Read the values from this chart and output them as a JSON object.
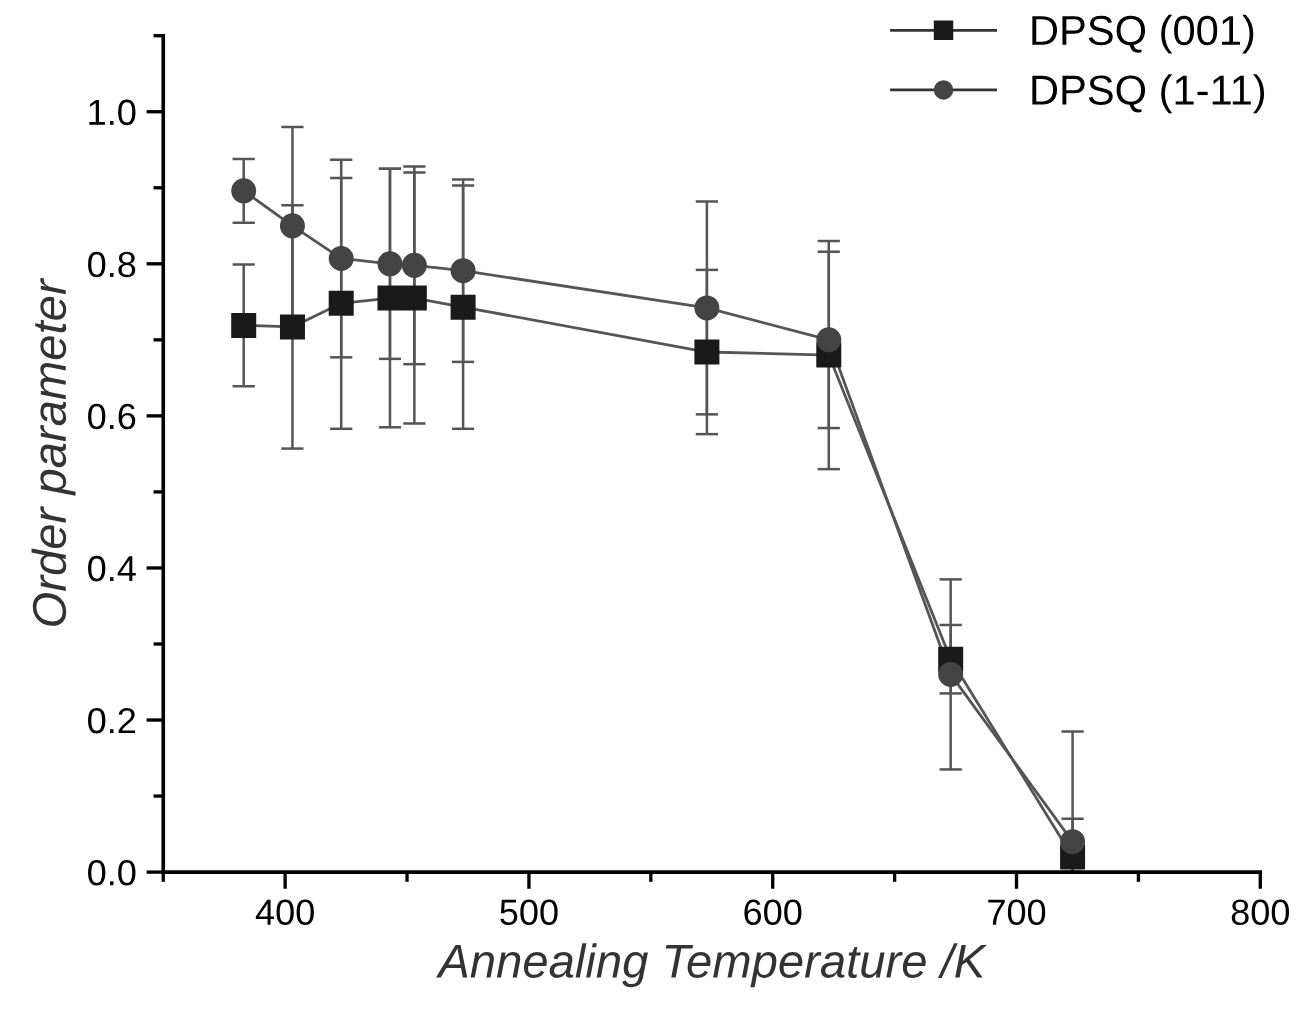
{
  "chart_data": {
    "type": "line",
    "xlabel": "Annealing Temperature /K",
    "ylabel": "Order parameter",
    "x": [
      383,
      403,
      423,
      443,
      453,
      473,
      573,
      623,
      673,
      723
    ],
    "series": [
      {
        "name": "DPSQ (001)",
        "color": "#1a1a1a",
        "marker": "square",
        "values": [
          0.719,
          0.717,
          0.748,
          0.755,
          0.755,
          0.743,
          0.684,
          0.68,
          0.28,
          0.02
        ],
        "errors": [
          0.08,
          0.16,
          0.165,
          0.17,
          0.165,
          0.16,
          0.108,
          0.15,
          0.045,
          [
            0.0,
            0.07
          ]
        ]
      },
      {
        "name": "DPSQ (1-11)",
        "color": "#444444",
        "marker": "circle",
        "values": [
          0.896,
          0.85,
          0.807,
          0.8,
          0.798,
          0.791,
          0.742,
          0.7,
          0.26,
          0.04
        ],
        "errors": [
          0.042,
          0.13,
          0.13,
          0.125,
          0.13,
          0.12,
          0.14,
          0.116,
          0.125,
          [
            0.0,
            0.185
          ]
        ]
      }
    ],
    "xlim": [
      350,
      800
    ],
    "xticks": [
      400,
      500,
      600,
      700,
      800
    ],
    "ylim": [
      0,
      1.1
    ],
    "yticks": [
      {
        "value": 0,
        "label": "0.0"
      },
      0.2,
      0.4,
      0.6,
      0.8,
      {
        "value": 1,
        "label": "1.0"
      }
    ],
    "legend": "top right",
    "grid": false,
    "line_style": "solid"
  }
}
